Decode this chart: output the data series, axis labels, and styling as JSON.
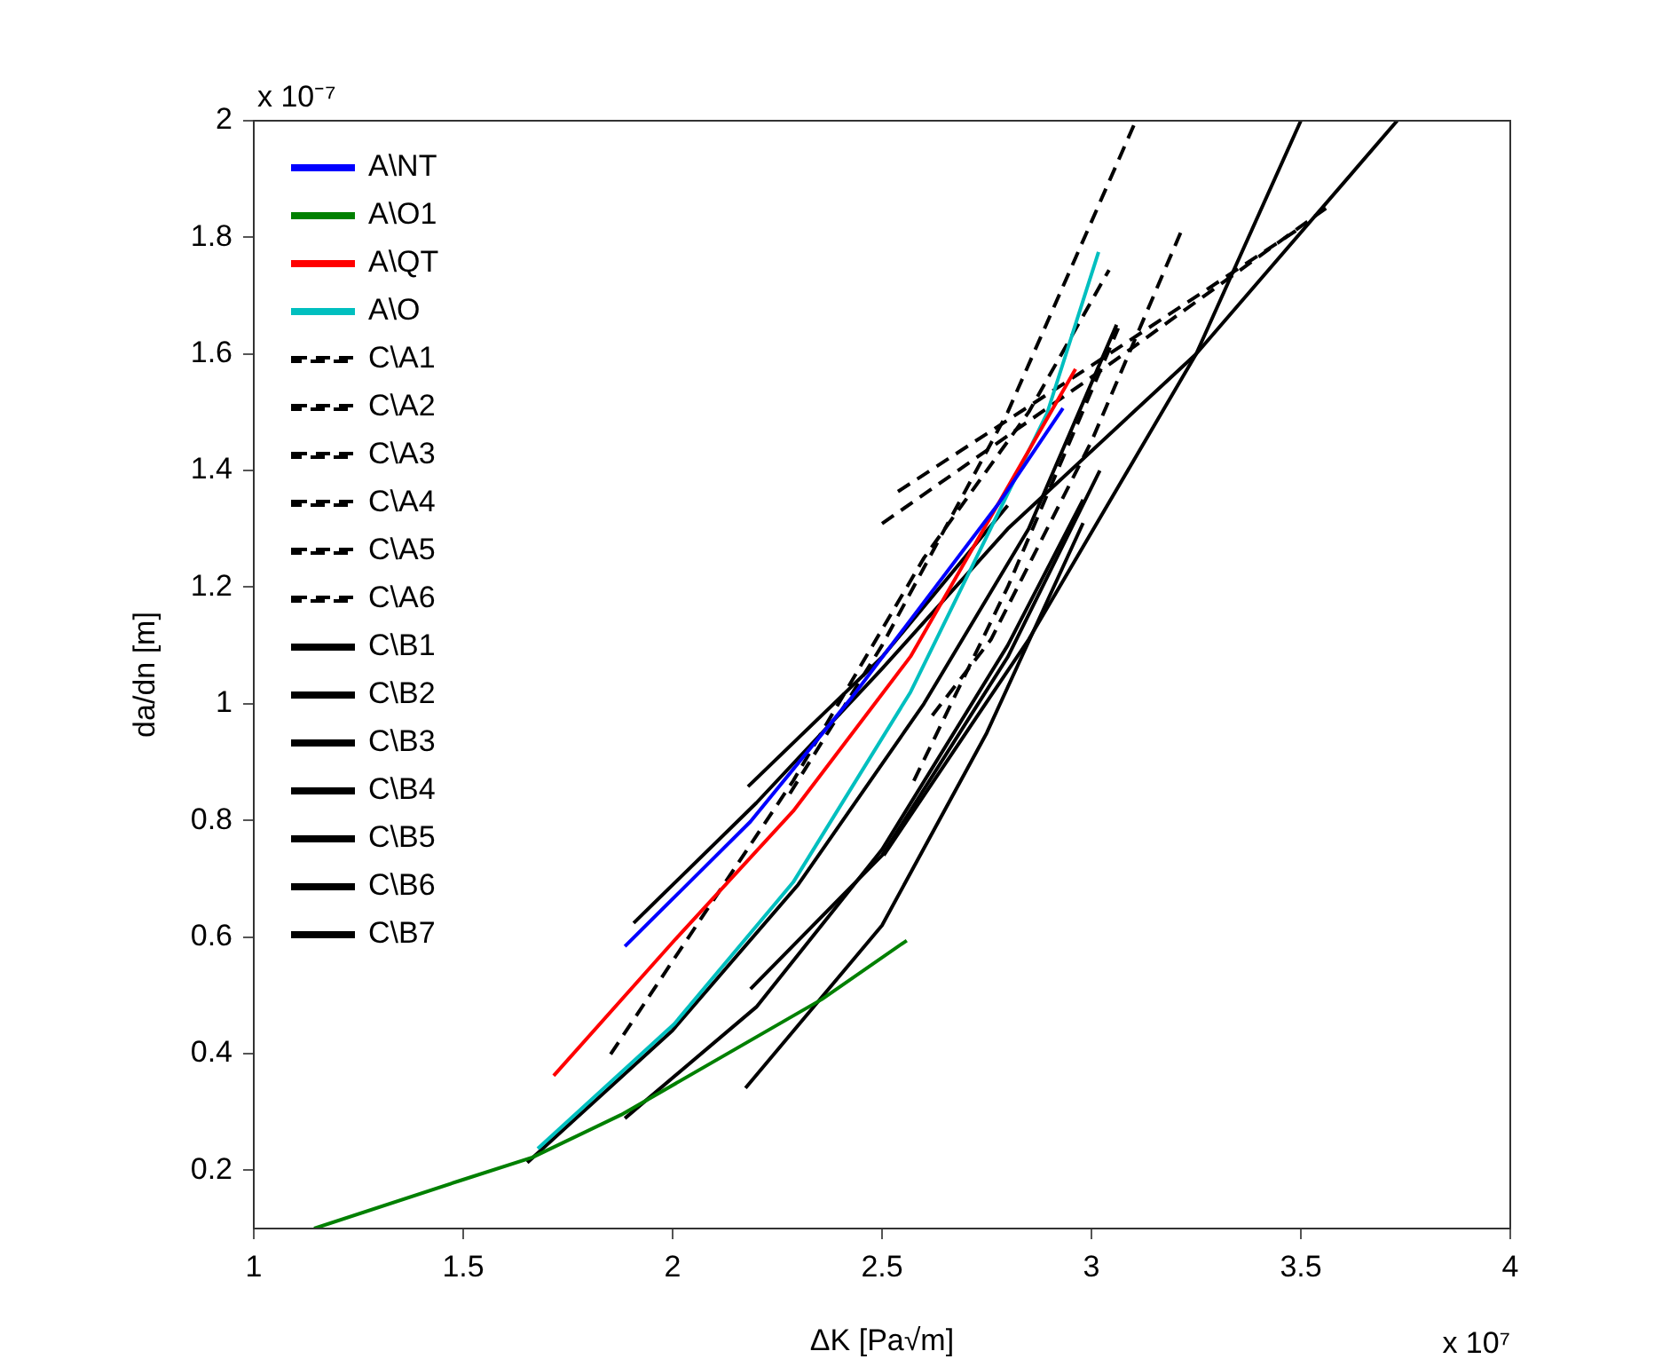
{
  "chart_data": {
    "type": "line",
    "xlabel": "ΔK [Pa√m]",
    "ylabel": "da/dn [m]",
    "xlim": [
      1,
      4
    ],
    "ylim": [
      0.1,
      2
    ],
    "xticks": [
      1,
      1.5,
      2,
      2.5,
      3,
      3.5,
      4
    ],
    "yticks": [
      0.2,
      0.4,
      0.6,
      0.8,
      1,
      1.2,
      1.4,
      1.6,
      1.8,
      2
    ],
    "grid": false,
    "legend": "top left",
    "marker": "none",
    "annotations": [
      "x 10⁻⁷",
      "x 10⁷"
    ],
    "series": [
      {
        "name": "A\\NT",
        "color": "#0000ff",
        "line_style": "solid",
        "x": [
          1.886,
          2.186,
          2.428,
          2.78,
          2.932
        ],
        "values": [
          0.584,
          0.798,
          1.011,
          1.345,
          1.507
        ]
      },
      {
        "name": "A\\O1",
        "color": "#008000",
        "line_style": "solid",
        "x": [
          1.144,
          1.496,
          1.665,
          1.877,
          2.356,
          2.559
        ],
        "values": [
          0.1,
          0.183,
          0.222,
          0.295,
          0.493,
          0.594
        ]
      },
      {
        "name": "A\\QT",
        "color": "#ff0000",
        "line_style": "solid",
        "x": [
          1.716,
          2.004,
          2.288,
          2.568,
          2.962
        ],
        "values": [
          0.362,
          0.594,
          0.816,
          1.081,
          1.574
        ]
      },
      {
        "name": "A\\O",
        "color": "#00bfbf",
        "line_style": "solid",
        "x": [
          1.678,
          2.004,
          2.288,
          2.568,
          2.894,
          3.017
        ],
        "values": [
          0.237,
          0.451,
          0.694,
          1.02,
          1.498,
          1.775
        ]
      },
      {
        "name": "C\\A1",
        "color": "#000000",
        "line_style": "dashed",
        "x": [
          1.852,
          2.004,
          2.288,
          2.6,
          2.85,
          3.042
        ],
        "values": [
          0.399,
          0.563,
          0.868,
          1.25,
          1.5,
          1.744
        ]
      },
      {
        "name": "C\\A2",
        "color": "#000000",
        "line_style": "dashed",
        "x": [
          2.28,
          2.5,
          2.8,
          3.106
        ],
        "values": [
          0.846,
          1.1,
          1.5,
          2
        ]
      },
      {
        "name": "C\\A3",
        "color": "#000000",
        "line_style": "dashed",
        "x": [
          2.62,
          2.76,
          3.0,
          3.22
        ],
        "values": [
          0.98,
          1.11,
          1.45,
          1.82
        ]
      },
      {
        "name": "C\\A4",
        "color": "#000000",
        "line_style": "dashed",
        "x": [
          2.576,
          2.8,
          3.064
        ],
        "values": [
          0.868,
          1.2,
          1.644
        ]
      },
      {
        "name": "C\\A5",
        "color": "#000000",
        "line_style": "dashed",
        "x": [
          2.5,
          3.0,
          3.56
        ],
        "values": [
          1.309,
          1.56,
          1.85
        ]
      },
      {
        "name": "C\\A6",
        "color": "#000000",
        "line_style": "dashed",
        "x": [
          2.538,
          3.0,
          3.5
        ],
        "values": [
          1.364,
          1.58,
          1.817
        ]
      },
      {
        "name": "C\\B1",
        "color": "#000000",
        "line_style": "solid",
        "x": [
          1.907,
          2.2,
          2.5,
          2.8,
          3.25,
          3.73
        ],
        "values": [
          0.624,
          0.83,
          1.06,
          1.3,
          1.6,
          2
        ]
      },
      {
        "name": "C\\B2",
        "color": "#000000",
        "line_style": "solid",
        "x": [
          2.18,
          2.5,
          2.8
        ],
        "values": [
          0.858,
          1.08,
          1.34
        ]
      },
      {
        "name": "C\\B3",
        "color": "#000000",
        "line_style": "solid",
        "x": [
          1.653,
          2.0,
          2.3,
          2.6,
          2.85,
          3.06
        ],
        "values": [
          0.213,
          0.44,
          0.69,
          1.0,
          1.3,
          1.65
        ]
      },
      {
        "name": "C\\B4",
        "color": "#000000",
        "line_style": "solid",
        "x": [
          1.886,
          2.2,
          2.5,
          2.8,
          2.98
        ],
        "values": [
          0.289,
          0.48,
          0.75,
          1.1,
          1.35
        ]
      },
      {
        "name": "C\\B5",
        "color": "#000000",
        "line_style": "solid",
        "x": [
          2.174,
          2.5,
          2.75,
          2.98
        ],
        "values": [
          0.341,
          0.62,
          0.95,
          1.31
        ]
      },
      {
        "name": "C\\B6",
        "color": "#000000",
        "line_style": "solid",
        "x": [
          2.186,
          2.5,
          2.8,
          3.02
        ],
        "values": [
          0.511,
          0.74,
          1.08,
          1.4
        ]
      },
      {
        "name": "C\\B7",
        "color": "#000000",
        "line_style": "solid",
        "x": [
          2.504,
          2.85,
          3.25,
          3.5
        ],
        "values": [
          0.74,
          1.11,
          1.6,
          2
        ]
      }
    ]
  }
}
